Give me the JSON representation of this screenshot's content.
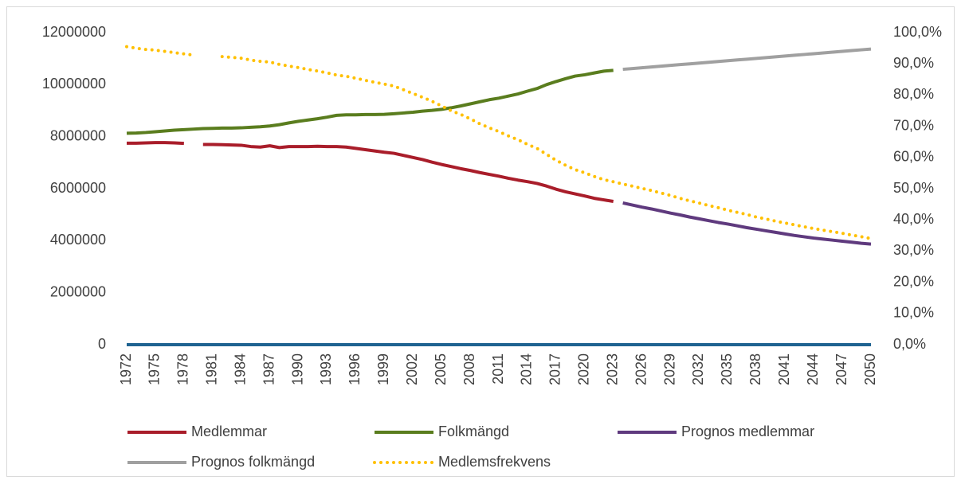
{
  "chart_data": {
    "type": "line",
    "categories": [
      "1972",
      null,
      null,
      "1975",
      null,
      null,
      "1978",
      null,
      null,
      "1981",
      null,
      null,
      "1984",
      null,
      null,
      "1987",
      null,
      null,
      "1990",
      null,
      null,
      "1993",
      null,
      null,
      "1996",
      null,
      null,
      "1999",
      null,
      null,
      "2002",
      null,
      null,
      "2005",
      null,
      null,
      "2008",
      null,
      null,
      "2011",
      null,
      null,
      "2014",
      null,
      null,
      "2017",
      null,
      null,
      "2020",
      null,
      null,
      "2023",
      null,
      null,
      "2026",
      null,
      null,
      "2029",
      null,
      null,
      "2032",
      null,
      null,
      "2035",
      null,
      null,
      "2038",
      null,
      null,
      "2041",
      null,
      null,
      "2044",
      null,
      null,
      "2047",
      null,
      null,
      "2050"
    ],
    "ylim": [
      0,
      12000000
    ],
    "yticks": [
      0,
      2000000,
      4000000,
      6000000,
      8000000,
      10000000,
      12000000
    ],
    "y2lim": [
      0,
      100
    ],
    "y2ticks": [
      {
        "value": 0,
        "label": "0,0%"
      },
      {
        "value": 10,
        "label": "10,0%"
      },
      {
        "value": 20,
        "label": "20,0%"
      },
      {
        "value": 30,
        "label": "30,0%"
      },
      {
        "value": 40,
        "label": "40,0%"
      },
      {
        "value": 50,
        "label": "50,0%"
      },
      {
        "value": 60,
        "label": "60,0%"
      },
      {
        "value": 70,
        "label": "70,0%"
      },
      {
        "value": 80,
        "label": "80,0%"
      },
      {
        "value": 90,
        "label": "90,0%"
      },
      {
        "value": 100,
        "label": "100,0%"
      }
    ],
    "series": [
      {
        "name": "Medlemmar",
        "color": "#a91d2a",
        "values": [
          7750000,
          7750000,
          7760000,
          7770000,
          7770000,
          7760000,
          7740000,
          null,
          7700000,
          7700000,
          7690000,
          7680000,
          7670000,
          7620000,
          7600000,
          7650000,
          7580000,
          7620000,
          7620000,
          7620000,
          7630000,
          7620000,
          7620000,
          7600000,
          7550000,
          7500000,
          7450000,
          7400000,
          7360000,
          7280000,
          7200000,
          7120000,
          7020000,
          6930000,
          6850000,
          6770000,
          6700000,
          6620000,
          6550000,
          6480000,
          6400000,
          6330000,
          6270000,
          6200000,
          6100000,
          5980000,
          5880000,
          5800000,
          5720000,
          5630000,
          5570000,
          5510000,
          null,
          null,
          null,
          null,
          null,
          null,
          null,
          null,
          null,
          null,
          null,
          null,
          null,
          null,
          null,
          null,
          null,
          null,
          null,
          null,
          null,
          null,
          null,
          null,
          null,
          null,
          null
        ]
      },
      {
        "name": "Folkmängd",
        "color": "#5a7d1e",
        "values": [
          8130000,
          8140000,
          8160000,
          8190000,
          8220000,
          8250000,
          8270000,
          8290000,
          8310000,
          8320000,
          8330000,
          8330000,
          8340000,
          8360000,
          8380000,
          8410000,
          8460000,
          8530000,
          8590000,
          8640000,
          8690000,
          8750000,
          8820000,
          8840000,
          8840000,
          8850000,
          8850000,
          8860000,
          8880000,
          8910000,
          8940000,
          8980000,
          9010000,
          9050000,
          9110000,
          9180000,
          9260000,
          9340000,
          9420000,
          9480000,
          9560000,
          9640000,
          9750000,
          9850000,
          10000000,
          10120000,
          10230000,
          10330000,
          10380000,
          10450000,
          10520000,
          10550000,
          null,
          null,
          null,
          null,
          null,
          null,
          null,
          null,
          null,
          null,
          null,
          null,
          null,
          null,
          null,
          null,
          null,
          null,
          null,
          null,
          null,
          null,
          null,
          null,
          null,
          null,
          null
        ]
      },
      {
        "name": "Prognos medlemmar",
        "color": "#5f3a7e",
        "values": [
          null,
          null,
          null,
          null,
          null,
          null,
          null,
          null,
          null,
          null,
          null,
          null,
          null,
          null,
          null,
          null,
          null,
          null,
          null,
          null,
          null,
          null,
          null,
          null,
          null,
          null,
          null,
          null,
          null,
          null,
          null,
          null,
          null,
          null,
          null,
          null,
          null,
          null,
          null,
          null,
          null,
          null,
          null,
          null,
          null,
          null,
          null,
          null,
          null,
          null,
          null,
          null,
          5450000,
          5370000,
          5290000,
          5220000,
          5140000,
          5060000,
          4990000,
          4910000,
          4840000,
          4770000,
          4700000,
          4640000,
          4570000,
          4500000,
          4440000,
          4380000,
          4320000,
          4260000,
          4200000,
          4150000,
          4100000,
          4060000,
          4020000,
          3980000,
          3940000,
          3900000,
          3870000
        ]
      },
      {
        "name": "Prognos folkmängd",
        "color": "#a0a0a0",
        "values": [
          null,
          null,
          null,
          null,
          null,
          null,
          null,
          null,
          null,
          null,
          null,
          null,
          null,
          null,
          null,
          null,
          null,
          null,
          null,
          null,
          null,
          null,
          null,
          null,
          null,
          null,
          null,
          null,
          null,
          null,
          null,
          null,
          null,
          null,
          null,
          null,
          null,
          null,
          null,
          null,
          null,
          null,
          null,
          null,
          null,
          null,
          null,
          null,
          null,
          null,
          null,
          null,
          10590000,
          10620000,
          10650000,
          10680000,
          10710000,
          10740000,
          10770000,
          10800000,
          10830000,
          10860000,
          10890000,
          10920000,
          10950000,
          10980000,
          11010000,
          11040000,
          11070000,
          11100000,
          11130000,
          11160000,
          11190000,
          11220000,
          11250000,
          11280000,
          11310000,
          11340000,
          11370000
        ]
      },
      {
        "name": "Medlemsfrekvens",
        "color": "#ffc000",
        "axis": "y2",
        "dotted": true,
        "values": [
          95.5,
          95.0,
          94.6,
          94.4,
          94.0,
          93.6,
          93.2,
          92.8,
          null,
          null,
          92.3,
          92.1,
          91.8,
          91.2,
          90.8,
          90.6,
          89.8,
          89.3,
          88.8,
          88.2,
          87.7,
          87.1,
          86.4,
          86.0,
          85.4,
          84.7,
          84.1,
          83.5,
          82.9,
          81.7,
          80.5,
          79.3,
          78.0,
          76.5,
          75.0,
          73.8,
          72.4,
          70.8,
          69.5,
          68.3,
          66.9,
          65.7,
          64.2,
          62.9,
          61.0,
          59.1,
          57.5,
          56.1,
          55.1,
          53.9,
          52.9,
          52.2,
          51.5,
          50.8,
          50.1,
          49.4,
          48.6,
          47.8,
          46.9,
          46.1,
          45.4,
          44.6,
          43.9,
          43.1,
          42.4,
          41.7,
          40.9,
          40.3,
          39.6,
          39.0,
          38.4,
          37.8,
          37.2,
          36.7,
          36.2,
          35.7,
          35.1,
          34.6,
          34.0
        ]
      },
      {
        "color": "#1f6391",
        "values": [
          0,
          0,
          0,
          0,
          0,
          0,
          0,
          0,
          0,
          0,
          0,
          0,
          0,
          0,
          0,
          0,
          0,
          0,
          0,
          0,
          0,
          0,
          0,
          0,
          0,
          0,
          0,
          0,
          0,
          0,
          0,
          0,
          0,
          0,
          0,
          0,
          0,
          0,
          0,
          0,
          0,
          0,
          0,
          0,
          0,
          0,
          0,
          0,
          0,
          0,
          0,
          0,
          0,
          0,
          0,
          0,
          0,
          0,
          0,
          0,
          0,
          0,
          0,
          0,
          0,
          0,
          0,
          0,
          0,
          0,
          0,
          0,
          0,
          0,
          0,
          0,
          0,
          0,
          0
        ]
      }
    ]
  }
}
